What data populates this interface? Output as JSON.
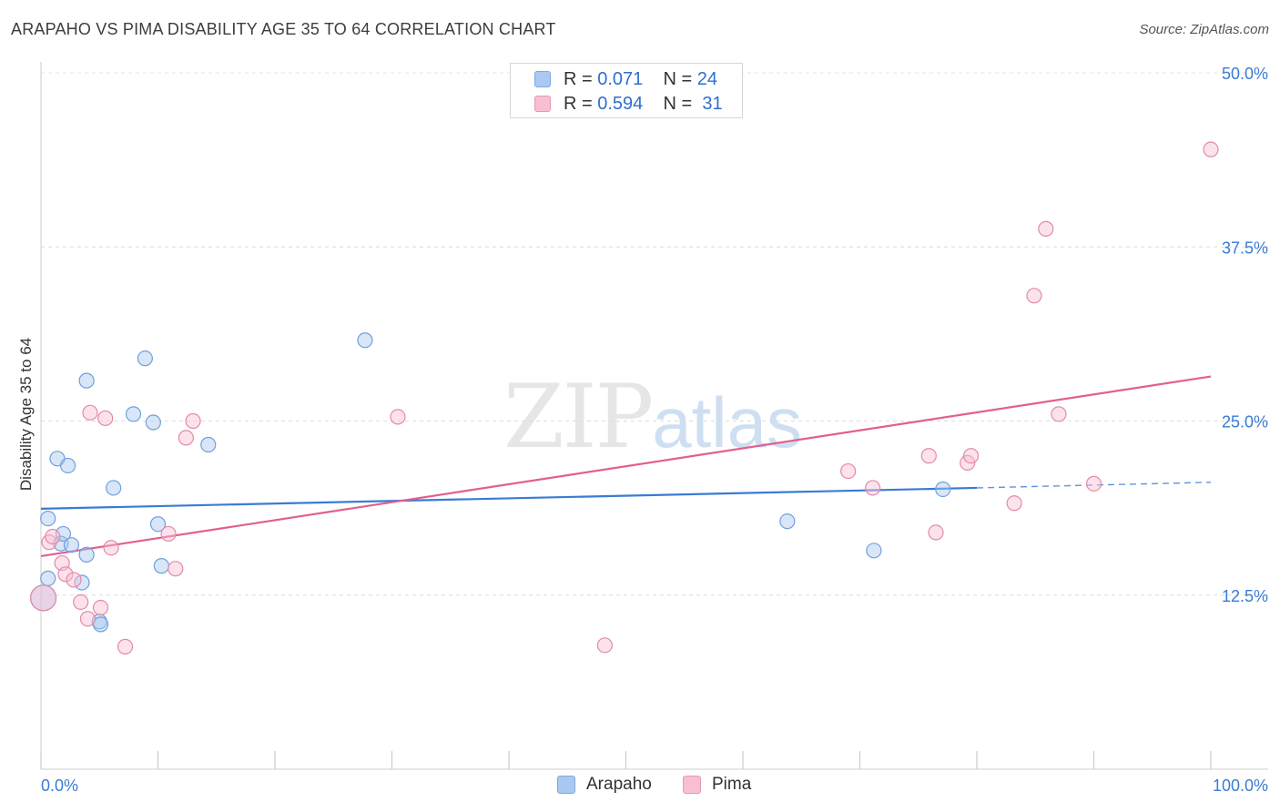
{
  "header": {
    "title": "ARAPAHO VS PIMA DISABILITY AGE 35 TO 64 CORRELATION CHART",
    "source": "Source: ZipAtlas.com"
  },
  "watermark": {
    "zip": "ZIP",
    "atlas": "atlas"
  },
  "legend": {
    "r_label": "R =",
    "n_label": "N =",
    "series": [
      {
        "name": "Arapaho",
        "r": "0.071",
        "n": "24",
        "fill": "#aac8f0",
        "stroke": "#7aaae0"
      },
      {
        "name": "Pima",
        "r": "0.594",
        "n": "31",
        "fill": "#f8bfd0",
        "stroke": "#e899b2"
      }
    ]
  },
  "chart_data": {
    "type": "scatter",
    "title": "ARAPAHO VS PIMA DISABILITY AGE 35 TO 64 CORRELATION CHART",
    "xlabel": "",
    "ylabel": "Disability Age 35 to 64",
    "xlim": [
      0,
      100
    ],
    "ylim": [
      0,
      50
    ],
    "x_tick_labels": [
      "0.0%",
      "100.0%"
    ],
    "y_ticks": [
      12.5,
      25.0,
      37.5,
      50.0
    ],
    "y_tick_labels": [
      "12.5%",
      "25.0%",
      "37.5%",
      "50.0%"
    ],
    "grid": true,
    "series": [
      {
        "name": "Arapaho",
        "color": "#3a7bd5",
        "points": [
          [
            0.2,
            12.3
          ],
          [
            0.6,
            13.7
          ],
          [
            0.6,
            18.0
          ],
          [
            1.4,
            22.3
          ],
          [
            1.7,
            16.2
          ],
          [
            1.9,
            16.9
          ],
          [
            2.3,
            21.8
          ],
          [
            2.6,
            16.1
          ],
          [
            3.5,
            13.4
          ],
          [
            3.9,
            15.4
          ],
          [
            3.9,
            27.9
          ],
          [
            5.0,
            10.6
          ],
          [
            5.1,
            10.4
          ],
          [
            6.2,
            20.2
          ],
          [
            7.9,
            25.5
          ],
          [
            8.9,
            29.5
          ],
          [
            9.6,
            24.9
          ],
          [
            10.0,
            17.6
          ],
          [
            10.3,
            14.6
          ],
          [
            14.3,
            23.3
          ],
          [
            27.7,
            30.8
          ],
          [
            63.8,
            17.8
          ],
          [
            71.2,
            15.7
          ],
          [
            77.1,
            20.1
          ]
        ],
        "trend": {
          "x": [
            0,
            80
          ],
          "y": [
            18.7,
            20.2
          ],
          "dashed_to": [
            100,
            20.6
          ]
        }
      },
      {
        "name": "Pima",
        "color": "#e0608e",
        "points": [
          [
            0.2,
            12.3
          ],
          [
            0.7,
            16.3
          ],
          [
            1.0,
            16.7
          ],
          [
            1.8,
            14.8
          ],
          [
            2.1,
            14.0
          ],
          [
            2.8,
            13.6
          ],
          [
            3.4,
            12.0
          ],
          [
            4.0,
            10.8
          ],
          [
            4.2,
            25.6
          ],
          [
            5.1,
            11.6
          ],
          [
            5.5,
            25.2
          ],
          [
            6.0,
            15.9
          ],
          [
            7.2,
            8.8
          ],
          [
            10.9,
            16.9
          ],
          [
            11.5,
            14.4
          ],
          [
            12.4,
            23.8
          ],
          [
            13.0,
            25.0
          ],
          [
            30.5,
            25.3
          ],
          [
            48.2,
            8.9
          ],
          [
            69.0,
            21.4
          ],
          [
            71.1,
            20.2
          ],
          [
            75.9,
            22.5
          ],
          [
            76.5,
            17.0
          ],
          [
            79.2,
            22.0
          ],
          [
            79.5,
            22.5
          ],
          [
            83.2,
            19.1
          ],
          [
            84.9,
            34.0
          ],
          [
            85.9,
            38.8
          ],
          [
            87.0,
            25.5
          ],
          [
            90.0,
            20.5
          ],
          [
            100.0,
            44.5
          ]
        ],
        "trend": {
          "x": [
            0,
            100
          ],
          "y": [
            15.3,
            28.2
          ]
        }
      }
    ]
  }
}
